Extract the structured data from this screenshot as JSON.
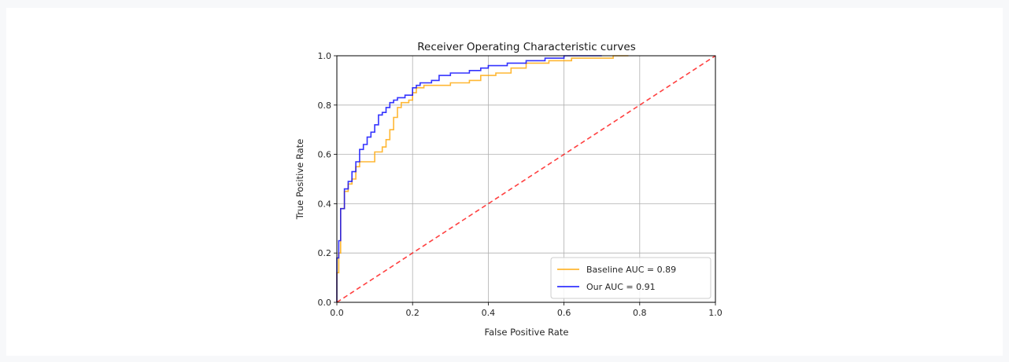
{
  "chart_data": {
    "type": "line",
    "title": "Receiver Operating Characteristic curves",
    "xlabel": "False Positive Rate",
    "ylabel": "True Positive Rate",
    "xlim": [
      0,
      1
    ],
    "ylim": [
      0,
      1
    ],
    "xticks": [
      "0.0",
      "0.2",
      "0.4",
      "0.6",
      "0.8",
      "1.0"
    ],
    "yticks": [
      "0.0",
      "0.2",
      "0.4",
      "0.6",
      "0.8",
      "1.0"
    ],
    "grid": true,
    "legend_position": "lower-right",
    "series": [
      {
        "name": "Baseline AUC = 0.89",
        "color": "#ffa500",
        "x": [
          0.0,
          0.0,
          0.005,
          0.005,
          0.01,
          0.01,
          0.02,
          0.02,
          0.03,
          0.03,
          0.04,
          0.04,
          0.05,
          0.05,
          0.06,
          0.06,
          0.08,
          0.08,
          0.1,
          0.1,
          0.12,
          0.12,
          0.13,
          0.13,
          0.14,
          0.14,
          0.15,
          0.15,
          0.16,
          0.16,
          0.17,
          0.17,
          0.19,
          0.19,
          0.2,
          0.2,
          0.21,
          0.21,
          0.23,
          0.23,
          0.3,
          0.3,
          0.35,
          0.35,
          0.38,
          0.38,
          0.42,
          0.42,
          0.46,
          0.46,
          0.5,
          0.5,
          0.56,
          0.56,
          0.62,
          0.62,
          0.68,
          0.68,
          0.73,
          0.73,
          0.77
        ],
        "y": [
          0.0,
          0.12,
          0.12,
          0.2,
          0.2,
          0.38,
          0.38,
          0.45,
          0.45,
          0.48,
          0.48,
          0.5,
          0.5,
          0.55,
          0.55,
          0.57,
          0.57,
          0.57,
          0.57,
          0.61,
          0.61,
          0.63,
          0.63,
          0.66,
          0.66,
          0.7,
          0.7,
          0.75,
          0.75,
          0.79,
          0.79,
          0.81,
          0.81,
          0.82,
          0.82,
          0.85,
          0.85,
          0.87,
          0.87,
          0.88,
          0.88,
          0.89,
          0.89,
          0.9,
          0.9,
          0.92,
          0.92,
          0.93,
          0.93,
          0.95,
          0.95,
          0.97,
          0.97,
          0.98,
          0.98,
          0.99,
          0.99,
          0.99,
          0.99,
          1.0,
          1.0
        ]
      },
      {
        "name": "Our AUC = 0.91",
        "color": "#0000ff",
        "x": [
          0.0,
          0.0,
          0.005,
          0.005,
          0.01,
          0.01,
          0.02,
          0.02,
          0.03,
          0.03,
          0.04,
          0.04,
          0.05,
          0.05,
          0.06,
          0.06,
          0.07,
          0.07,
          0.08,
          0.08,
          0.09,
          0.09,
          0.1,
          0.1,
          0.11,
          0.11,
          0.12,
          0.12,
          0.13,
          0.13,
          0.14,
          0.14,
          0.15,
          0.15,
          0.16,
          0.16,
          0.18,
          0.18,
          0.2,
          0.2,
          0.21,
          0.21,
          0.22,
          0.22,
          0.25,
          0.25,
          0.27,
          0.27,
          0.3,
          0.3,
          0.35,
          0.35,
          0.38,
          0.38,
          0.4,
          0.4,
          0.45,
          0.45,
          0.5,
          0.5,
          0.55,
          0.55,
          0.6,
          0.6,
          0.7,
          0.7
        ],
        "y": [
          0.0,
          0.18,
          0.18,
          0.25,
          0.25,
          0.38,
          0.38,
          0.46,
          0.46,
          0.49,
          0.49,
          0.53,
          0.53,
          0.57,
          0.57,
          0.62,
          0.62,
          0.64,
          0.64,
          0.67,
          0.67,
          0.69,
          0.69,
          0.72,
          0.72,
          0.76,
          0.76,
          0.77,
          0.77,
          0.79,
          0.79,
          0.81,
          0.81,
          0.82,
          0.82,
          0.83,
          0.83,
          0.84,
          0.84,
          0.87,
          0.87,
          0.88,
          0.88,
          0.89,
          0.89,
          0.9,
          0.9,
          0.92,
          0.92,
          0.93,
          0.93,
          0.94,
          0.94,
          0.95,
          0.95,
          0.96,
          0.96,
          0.97,
          0.97,
          0.98,
          0.98,
          0.99,
          0.99,
          1.0,
          1.0,
          1.0
        ]
      },
      {
        "name": "",
        "color": "#ff0000",
        "style": "dashed",
        "x": [
          0,
          1
        ],
        "y": [
          0,
          1
        ]
      }
    ]
  }
}
